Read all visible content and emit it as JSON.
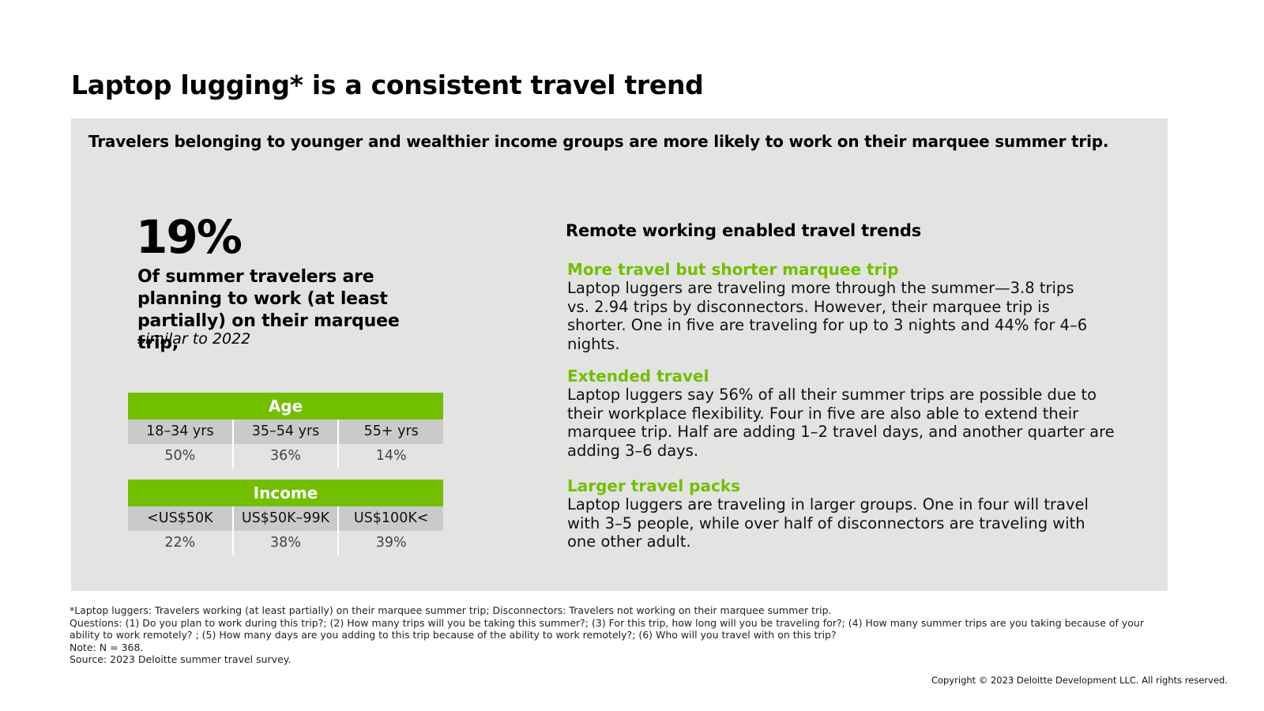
{
  "title": "Laptop lugging* is a consistent travel trend",
  "subtitle": "Travelers belonging to younger and wealthier income groups are more likely to work on their marquee summer trip.",
  "stat": {
    "value": "19%",
    "description": "Of summer travelers are planning to work (at least partially) on their marquee trip,",
    "note": "similar to 2022"
  },
  "age_table": {
    "header": "Age",
    "labels": [
      "18–34 yrs",
      "35–54 yrs",
      "55+ yrs"
    ],
    "values": [
      "50%",
      "36%",
      "14%"
    ]
  },
  "income_table": {
    "header": "Income",
    "labels": [
      "<US$50K",
      "US$50K–99K",
      "US$100K<"
    ],
    "values": [
      "22%",
      "38%",
      "39%"
    ]
  },
  "trends": {
    "heading": "Remote working enabled travel trends",
    "items": [
      {
        "title": "More travel but shorter marquee trip",
        "body": "Laptop luggers are traveling more through the summer—3.8 trips vs. 2.94 trips by disconnectors. However, their marquee trip is shorter. One in five are traveling for up to 3 nights and 44% for 4–6 nights."
      },
      {
        "title": "Extended travel",
        "body": "Laptop luggers say 56% of all their summer trips are possible due to their workplace flexibility. Four in five are also able to extend their marquee trip. Half are adding 1–2 travel days, and another quarter are adding 3–6 days."
      },
      {
        "title": "Larger travel packs",
        "body": "Laptop luggers are traveling in larger groups. One in four will travel with 3–5 people, while over half of disconnectors are traveling with one other adult."
      }
    ]
  },
  "footnotes": {
    "definition": "*Laptop luggers: Travelers working (at least partially) on their marquee summer trip; Disconnectors: Travelers not working on their marquee summer trip.",
    "questions": "Questions: (1) Do you plan to work during this trip?; (2) How many trips will you be taking this summer?; (3) For this trip, how long will you be traveling for?; (4) How many summer trips are you taking because of your ability to work remotely? ; (5) How many days are you adding to this trip because of the ability to work remotely?; (6) Who will you travel with on this trip?",
    "note": "Note: N = 368.",
    "source": "Source: 2023 Deloitte summer travel survey."
  },
  "copyright": "Copyright © 2023 Deloitte Development LLC. All rights reserved.",
  "colors": {
    "accent": "#72bf00",
    "panel": "#e3e3e2",
    "table_label_bg": "#cacaca"
  }
}
